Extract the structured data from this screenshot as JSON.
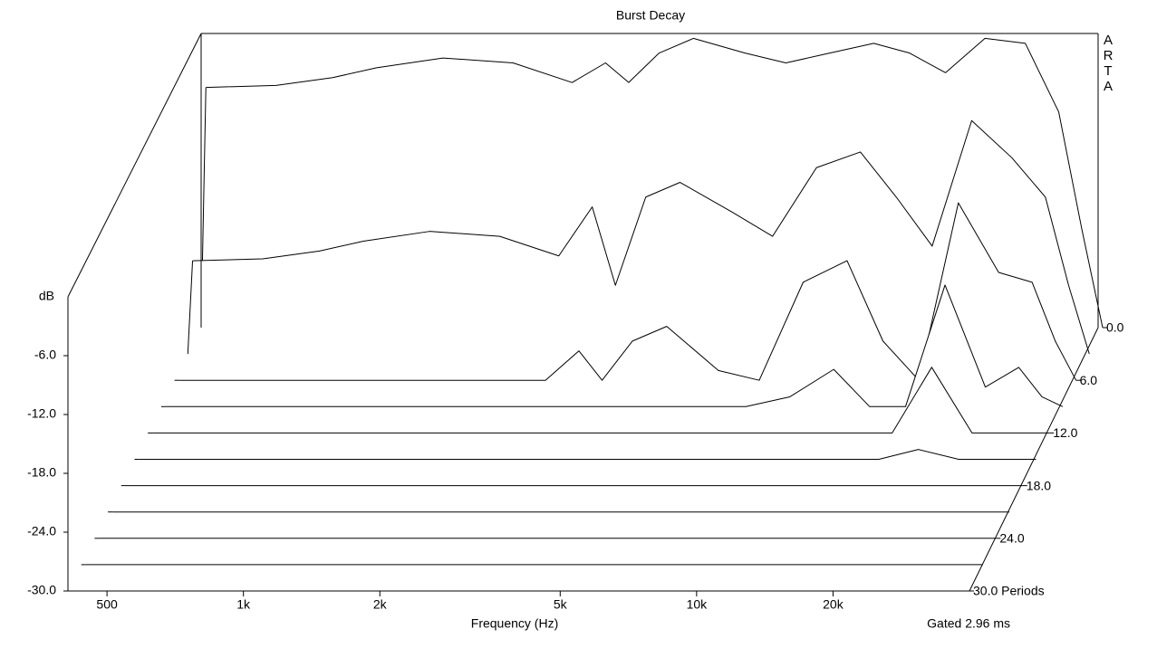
{
  "chart_data": {
    "type": "waterfall",
    "title": "Burst Decay",
    "xlabel": "Frequency (Hz)",
    "ylabel": "dB",
    "watermark": "ARTA",
    "note": "Gated 2.96 ms",
    "x_log": true,
    "xlim": [
      410,
      40000
    ],
    "xticks": [
      {
        "value": 500,
        "label": "500"
      },
      {
        "value": 1000,
        "label": "1k"
      },
      {
        "value": 2000,
        "label": "2k"
      },
      {
        "value": 5000,
        "label": "5k"
      },
      {
        "value": 10000,
        "label": "10k"
      },
      {
        "value": 20000,
        "label": "20k"
      }
    ],
    "ylim": [
      -30,
      0
    ],
    "yticks": [
      {
        "value": -30,
        "label": "-30.0"
      },
      {
        "value": -24,
        "label": "-24.0"
      },
      {
        "value": -18,
        "label": "-18.0"
      },
      {
        "value": -12,
        "label": "-12.0"
      },
      {
        "value": -6,
        "label": "-6.0"
      }
    ],
    "zlim": [
      0,
      30
    ],
    "zticks": [
      {
        "value": 0,
        "label": "0.0"
      },
      {
        "value": 6,
        "label": "6.0"
      },
      {
        "value": 12,
        "label": "12.0"
      },
      {
        "value": 18,
        "label": "18.0"
      },
      {
        "value": 24,
        "label": "24.0"
      },
      {
        "value": 30,
        "label": "30.0 Periods"
      }
    ],
    "line_color": "#000000",
    "x": [
      420,
      600,
      800,
      1000,
      1400,
      2000,
      2700,
      3200,
      3600,
      4200,
      5000,
      6500,
      8000,
      10000,
      12500,
      15000,
      18000,
      22000,
      27000,
      32000,
      36000,
      40000
    ],
    "slices": [
      {
        "period": 0,
        "values": [
          -5.5,
          -5.3,
          -4.5,
          -3.5,
          -2.5,
          -3,
          -5,
          -3,
          -5,
          -2,
          -0.5,
          -2,
          -3,
          -2,
          -1,
          -2,
          -4,
          -0.5,
          -1,
          -8,
          -20,
          -30
        ]
      },
      {
        "period": 3,
        "values": [
          -20.5,
          -20.3,
          -19.5,
          -18.5,
          -17.5,
          -18,
          -20,
          -15,
          -23,
          -14,
          -12.5,
          -15.5,
          -18,
          -11,
          -9.4,
          -14,
          -19,
          -6.2,
          -10,
          -14,
          -23,
          -30
        ]
      },
      {
        "period": 6,
        "values": [
          -30,
          -30,
          -30,
          -30,
          -30,
          -30,
          -30,
          -27,
          -30,
          -26,
          -24.5,
          -29,
          -30,
          -20,
          -17.8,
          -26,
          -30,
          -11.9,
          -19,
          -20,
          -26,
          -30
        ]
      },
      {
        "period": 9,
        "values": [
          -30,
          -30,
          -30,
          -30,
          -30,
          -30,
          -30,
          -30,
          -30,
          -30,
          -30,
          -30,
          -30,
          -29,
          -26.2,
          -30,
          -30,
          -17.6,
          -28,
          -26,
          -29,
          -30
        ]
      },
      {
        "period": 12,
        "values": [
          -30,
          -30,
          -30,
          -30,
          -30,
          -30,
          -30,
          -30,
          -30,
          -30,
          -30,
          -30,
          -30,
          -30,
          -30,
          -30,
          -30,
          -23.3,
          -30,
          -30,
          -30,
          -30
        ]
      },
      {
        "period": 15,
        "values": [
          -30,
          -30,
          -30,
          -30,
          -30,
          -30,
          -30,
          -30,
          -30,
          -30,
          -30,
          -30,
          -30,
          -30,
          -30,
          -30,
          -30,
          -29,
          -30,
          -30,
          -30,
          -30
        ]
      },
      {
        "period": 18,
        "values": [
          -30,
          -30,
          -30,
          -30,
          -30,
          -30,
          -30,
          -30,
          -30,
          -30,
          -30,
          -30,
          -30,
          -30,
          -30,
          -30,
          -30,
          -30,
          -30,
          -30,
          -30,
          -30
        ]
      },
      {
        "period": 21,
        "values": [
          -30,
          -30,
          -30,
          -30,
          -30,
          -30,
          -30,
          -30,
          -30,
          -30,
          -30,
          -30,
          -30,
          -30,
          -30,
          -30,
          -30,
          -30,
          -30,
          -30,
          -30,
          -30
        ]
      },
      {
        "period": 24,
        "values": [
          -30,
          -30,
          -30,
          -30,
          -30,
          -30,
          -30,
          -30,
          -30,
          -30,
          -30,
          -30,
          -30,
          -30,
          -30,
          -30,
          -30,
          -30,
          -30,
          -30,
          -30,
          -30
        ]
      },
      {
        "period": 27,
        "values": [
          -30,
          -30,
          -30,
          -30,
          -30,
          -30,
          -30,
          -30,
          -30,
          -30,
          -30,
          -30,
          -30,
          -30,
          -30,
          -30,
          -30,
          -30,
          -30,
          -30,
          -30,
          -30
        ]
      },
      {
        "period": 30,
        "values": [
          -30,
          -30,
          -30,
          -30,
          -30,
          -30,
          -30,
          -30,
          -30,
          -30,
          -30,
          -30,
          -30,
          -30,
          -30,
          -30,
          -30,
          -30,
          -30,
          -30,
          -30,
          -30
        ]
      }
    ]
  }
}
